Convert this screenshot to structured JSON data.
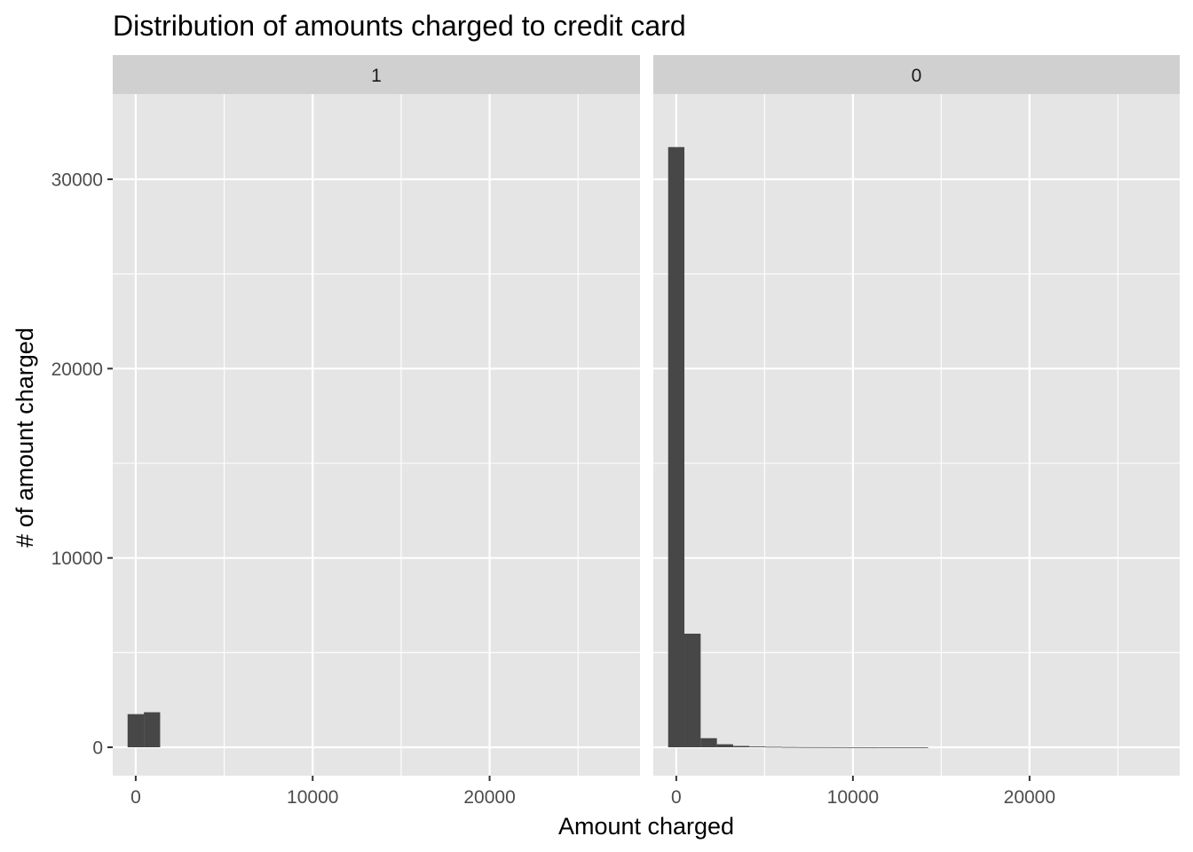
{
  "chart_data": {
    "type": "bar",
    "title": "Distribution of amounts charged to credit card",
    "xlabel": "Amount charged",
    "ylabel": "# of amount charged",
    "xlim": [
      -1300,
      28500
    ],
    "ylim": [
      -1500,
      34500
    ],
    "x_ticks": [
      0,
      10000,
      20000
    ],
    "x_minor_ticks": [
      5000,
      15000,
      25000
    ],
    "y_ticks": [
      0,
      10000,
      20000,
      30000
    ],
    "y_minor_ticks": [
      5000,
      15000,
      25000
    ],
    "bin_width": 920,
    "grid": true,
    "colors": {
      "panel_background": "#e5e5e5",
      "strip_background": "#d0d0d0",
      "grid": "#ffffff",
      "bar": "#474747"
    },
    "panels": [
      {
        "label": "1",
        "bins": [
          {
            "x": 0,
            "count": 1750
          },
          {
            "x": 920,
            "count": 1850
          }
        ]
      },
      {
        "label": "0",
        "bins": [
          {
            "x": 0,
            "count": 31700
          },
          {
            "x": 920,
            "count": 6000
          },
          {
            "x": 1840,
            "count": 480
          },
          {
            "x": 2760,
            "count": 160
          },
          {
            "x": 3680,
            "count": 70
          },
          {
            "x": 4600,
            "count": 40
          },
          {
            "x": 5520,
            "count": 25
          },
          {
            "x": 6440,
            "count": 15
          },
          {
            "x": 7360,
            "count": 10
          },
          {
            "x": 8280,
            "count": 8
          },
          {
            "x": 9200,
            "count": 6
          },
          {
            "x": 10120,
            "count": 4
          },
          {
            "x": 11040,
            "count": 3
          },
          {
            "x": 11960,
            "count": 3
          },
          {
            "x": 12880,
            "count": 2
          },
          {
            "x": 13800,
            "count": 2
          }
        ]
      }
    ]
  }
}
